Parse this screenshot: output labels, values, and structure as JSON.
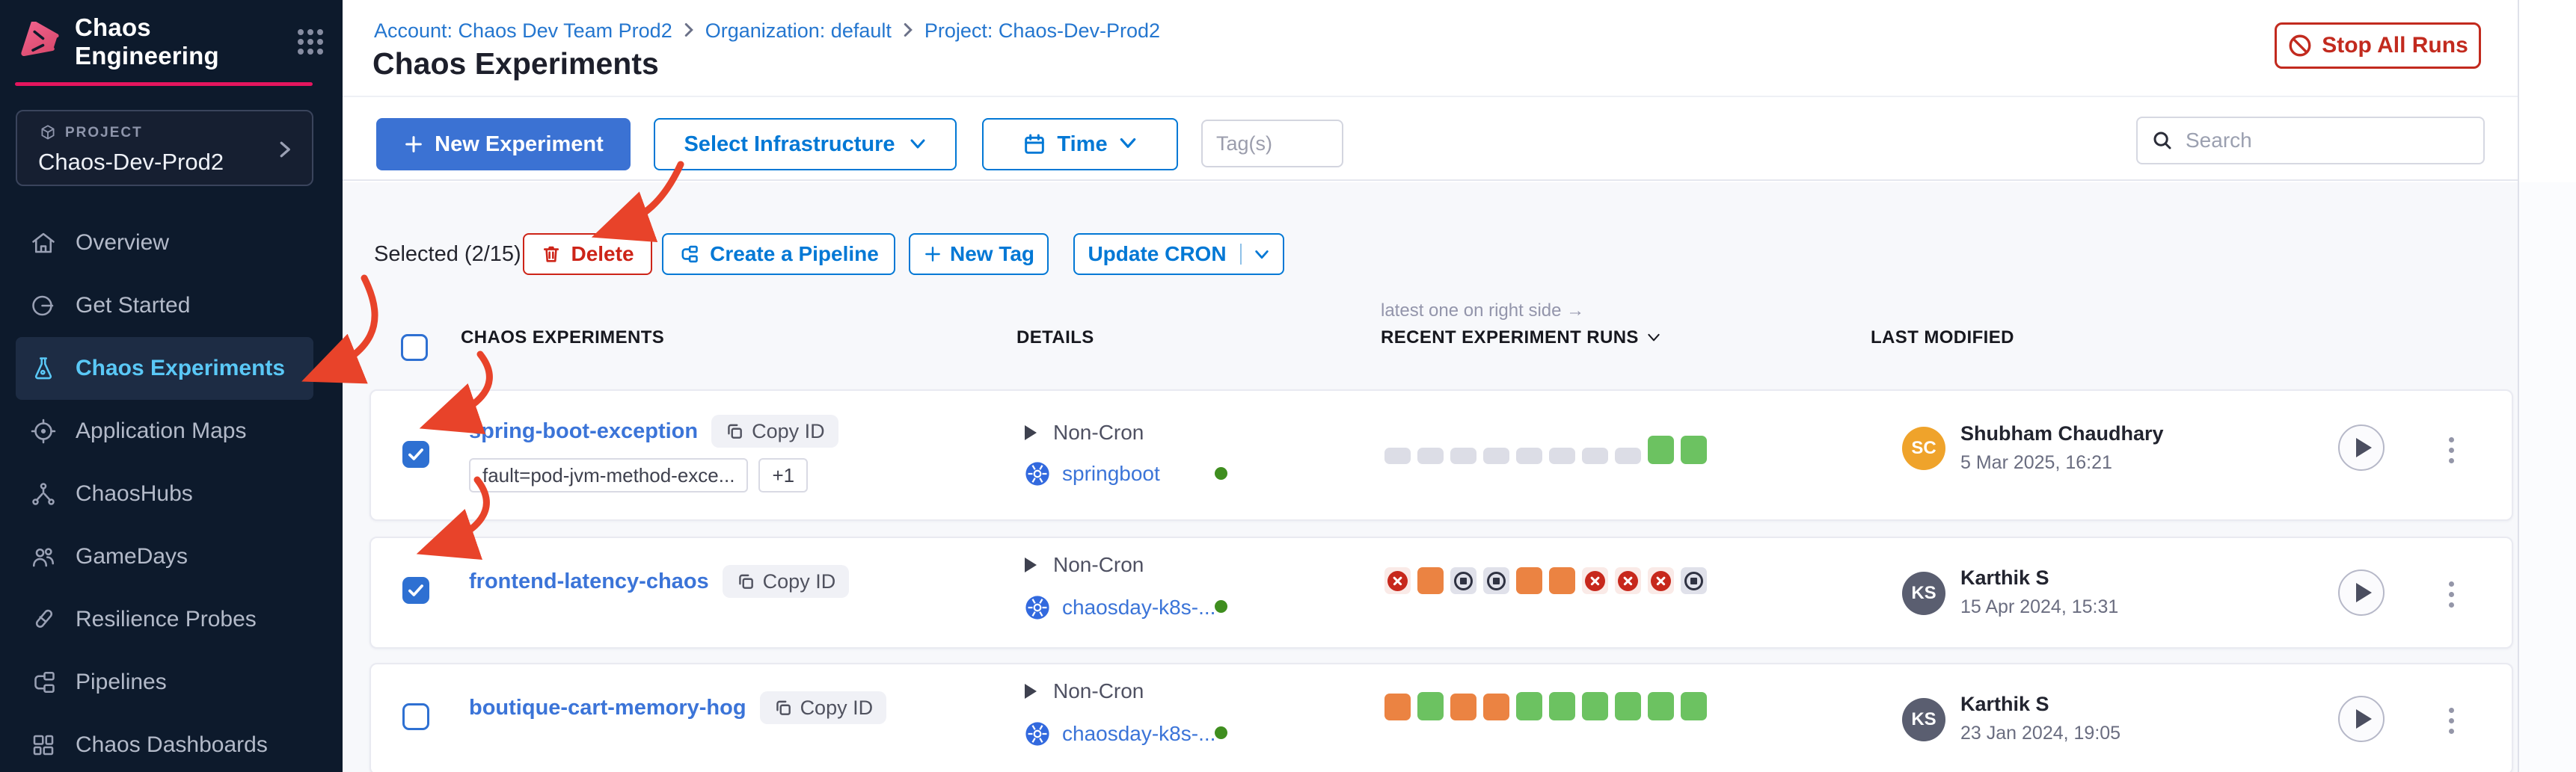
{
  "colors": {
    "accent_pink": "#e4155e",
    "primary_blue": "#0278d5",
    "button_blue": "#3b72d3",
    "danger_red": "#cd2418",
    "run_success": "#6cc261",
    "run_running": "#eb8342",
    "run_failed": "#c7281c",
    "infra_status_green": "#3f8e1f"
  },
  "sidebar": {
    "app_title": "Chaos Engineering",
    "project_label": "PROJECT",
    "project_name": "Chaos-Dev-Prod2",
    "items": [
      {
        "label": "Overview",
        "active": false
      },
      {
        "label": "Get Started",
        "active": false
      },
      {
        "label": "Chaos Experiments",
        "active": true
      },
      {
        "label": "Application Maps",
        "active": false
      },
      {
        "label": "ChaosHubs",
        "active": false
      },
      {
        "label": "GameDays",
        "active": false
      },
      {
        "label": "Resilience Probes",
        "active": false
      },
      {
        "label": "Pipelines",
        "active": false
      },
      {
        "label": "Chaos Dashboards",
        "active": false
      }
    ]
  },
  "header": {
    "breadcrumb": [
      "Account: Chaos Dev Team Prod2",
      "Organization: default",
      "Project: Chaos-Dev-Prod2"
    ],
    "title": "Chaos Experiments",
    "stop_all_runs_label": "Stop All Runs"
  },
  "toolbar": {
    "new_experiment_label": "New Experiment",
    "select_infrastructure_label": "Select Infrastructure",
    "time_label": "Time",
    "tags_placeholder": "Tag(s)",
    "search_placeholder": "Search"
  },
  "selection_bar": {
    "selected_text": "Selected (2/15)",
    "delete_label": "Delete",
    "create_pipeline_label": "Create a Pipeline",
    "new_tag_label": "New Tag",
    "update_cron_label": "Update CRON"
  },
  "table": {
    "note": "latest one on right side →",
    "copy_id_label": "Copy ID",
    "columns": {
      "experiments": "CHAOS EXPERIMENTS",
      "details": "DETAILS",
      "recent_runs": "RECENT EXPERIMENT RUNS",
      "last_modified": "LAST MODIFIED"
    },
    "rows": [
      {
        "name": "spring-boot-exception",
        "checked": true,
        "tags": [
          "fault=pod-jvm-method-exce...",
          "+1"
        ],
        "schedule": "Non-Cron",
        "infrastructure": "springboot",
        "runs": [
          "placeholder",
          "placeholder",
          "placeholder",
          "placeholder",
          "placeholder",
          "placeholder",
          "placeholder",
          "placeholder",
          "success",
          "success"
        ],
        "modified_by": {
          "initials": "SC",
          "name": "Shubham Chaudhary",
          "date": "5 Mar 2025, 16:21",
          "avatar_color": "#efa32b"
        }
      },
      {
        "name": "frontend-latency-chaos",
        "checked": true,
        "tags": [],
        "schedule": "Non-Cron",
        "infrastructure": "chaosday-k8s-...",
        "runs": [
          "failed",
          "running",
          "stopped",
          "stopped",
          "running",
          "running",
          "failed",
          "failed",
          "failed",
          "stopped"
        ],
        "modified_by": {
          "initials": "KS",
          "name": "Karthik S",
          "date": "15 Apr 2024, 15:31",
          "avatar_color": "#5a5e70"
        }
      },
      {
        "name": "boutique-cart-memory-hog",
        "checked": false,
        "tags": [],
        "schedule": "Non-Cron",
        "infrastructure": "chaosday-k8s-...",
        "runs": [
          "running",
          "success",
          "running",
          "running",
          "success",
          "success",
          "success",
          "success",
          "success",
          "success"
        ],
        "modified_by": {
          "initials": "KS",
          "name": "Karthik S",
          "date": "23 Jan 2024, 19:05",
          "avatar_color": "#5a5e70"
        }
      }
    ]
  }
}
